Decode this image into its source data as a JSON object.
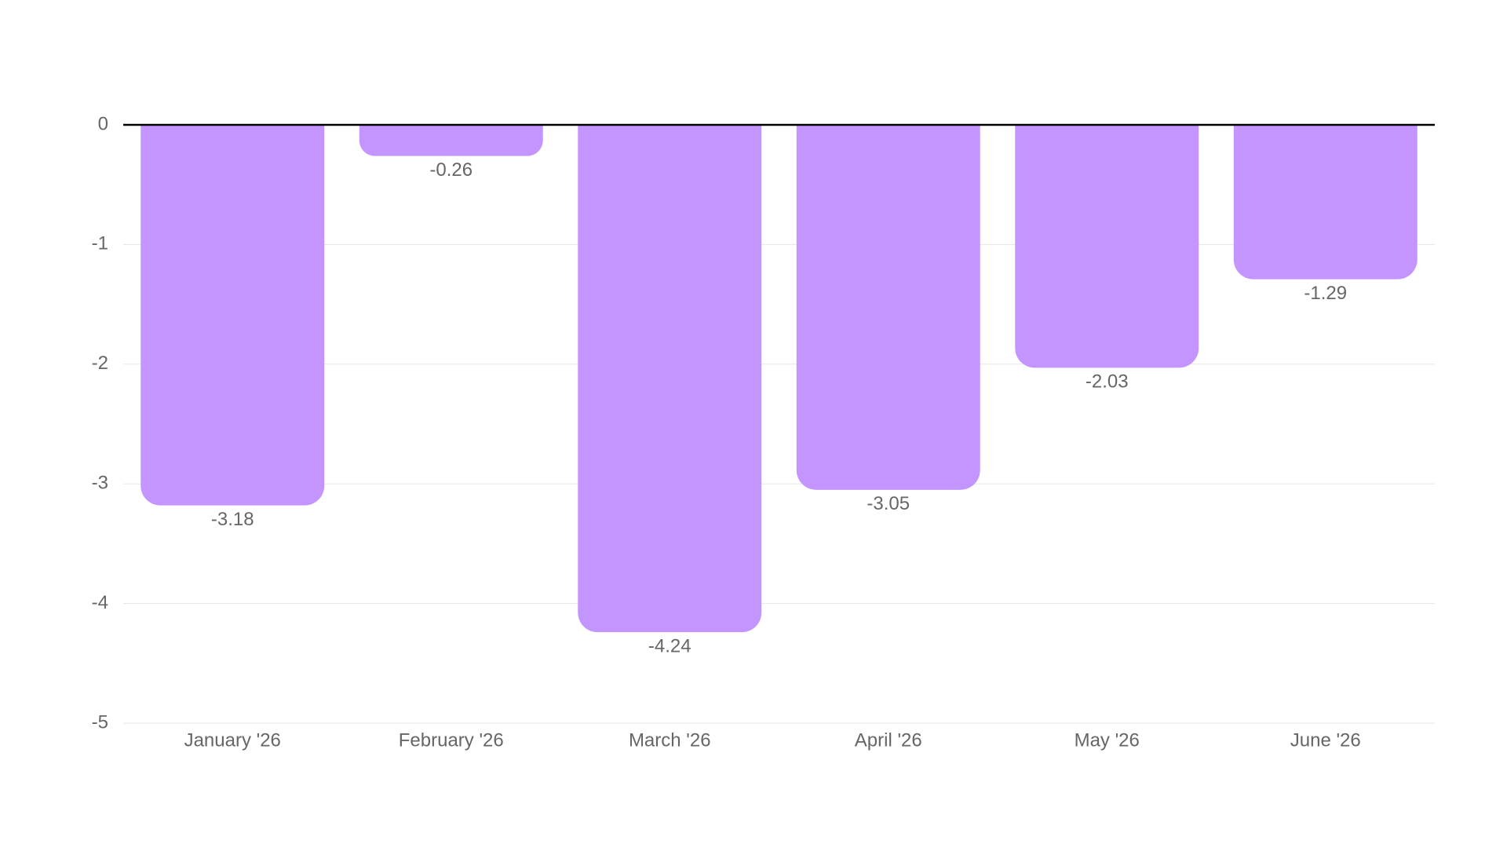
{
  "chart_data": {
    "type": "bar",
    "categories": [
      "January '26",
      "February '26",
      "March '26",
      "April '26",
      "May '26",
      "June '26"
    ],
    "values": [
      -3.18,
      -0.26,
      -4.24,
      -3.05,
      -2.03,
      -1.29
    ],
    "color": "#c495fe",
    "ylim": [
      -5,
      0
    ],
    "yticks": [
      -5,
      -4,
      -3,
      -2,
      -1,
      0
    ],
    "grid": true
  }
}
